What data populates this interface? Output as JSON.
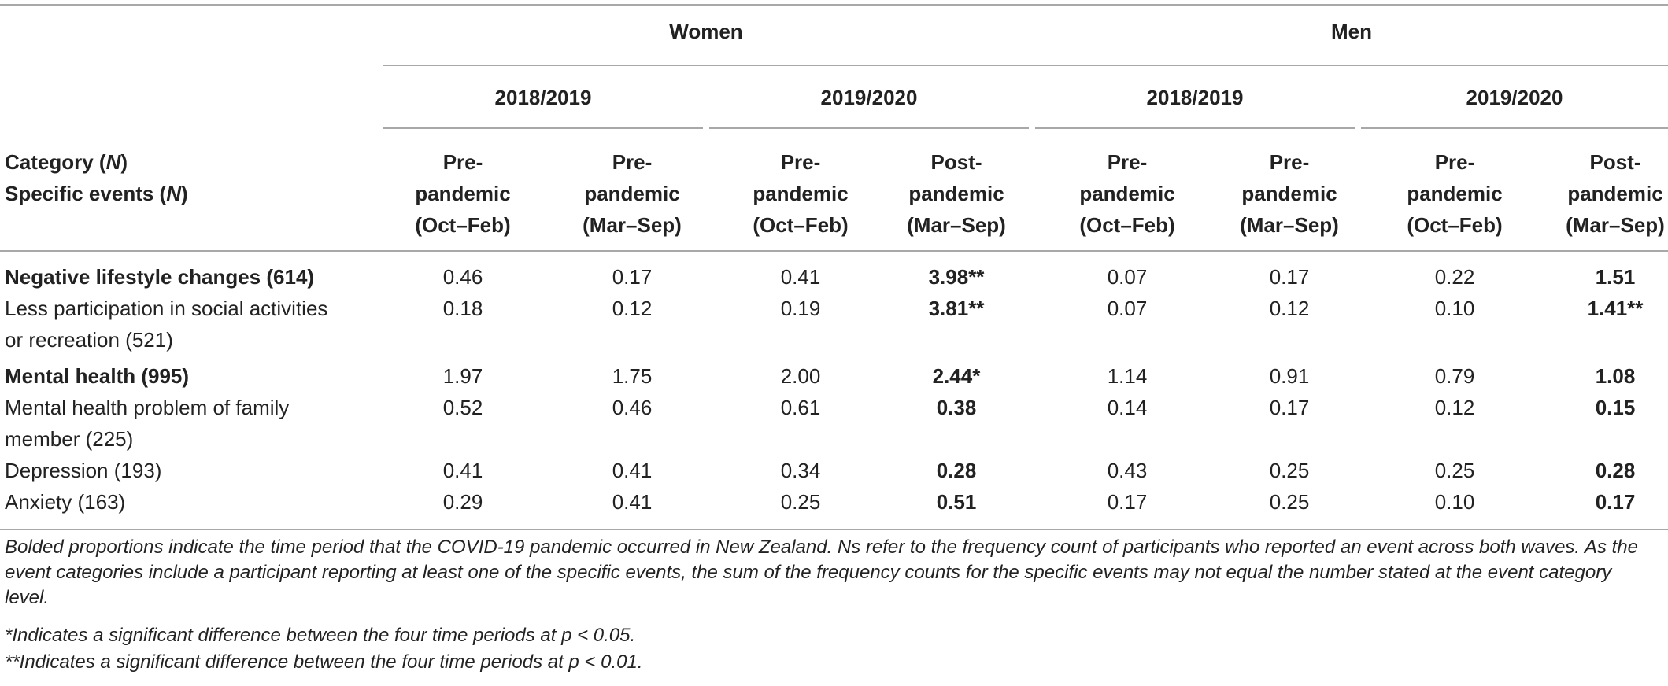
{
  "header": {
    "groups": [
      "Women",
      "Men"
    ],
    "years": [
      "2018/2019",
      "2019/2020",
      "2018/2019",
      "2019/2020"
    ],
    "stub": {
      "line1": "Category (",
      "line1_n": "N",
      "line1_end": ")",
      "line2": "Specific events (",
      "line2_n": "N",
      "line2_end": ")"
    },
    "periods": [
      {
        "l1": "Pre-",
        "l2": "pandemic",
        "l3": "(Oct–Feb)"
      },
      {
        "l1": "Pre-",
        "l2": "pandemic",
        "l3": "(Mar–Sep)"
      },
      {
        "l1": "Pre-",
        "l2": "pandemic",
        "l3": "(Oct–Feb)"
      },
      {
        "l1": "Post-",
        "l2": "pandemic",
        "l3": "(Mar–Sep)"
      },
      {
        "l1": "Pre-",
        "l2": "pandemic",
        "l3": "(Oct–Feb)"
      },
      {
        "l1": "Pre-",
        "l2": "pandemic",
        "l3": "(Mar–Sep)"
      },
      {
        "l1": "Pre-",
        "l2": "pandemic",
        "l3": "(Oct–Feb)"
      },
      {
        "l1": "Post-",
        "l2": "pandemic",
        "l3": "(Mar–Sep)"
      }
    ]
  },
  "rows": [
    {
      "label1": "Negative lifestyle changes (614)",
      "label2": "",
      "bold": true,
      "values": [
        "0.46",
        "0.17",
        "0.41",
        "3.98**",
        "0.07",
        "0.17",
        "0.22",
        "1.51"
      ]
    },
    {
      "label1": "Less participation in social activities",
      "label2": "or recreation (521)",
      "bold": false,
      "values": [
        "0.18",
        "0.12",
        "0.19",
        "3.81**",
        "0.07",
        "0.12",
        "0.10",
        "1.41**"
      ]
    },
    {
      "label1": "Mental health (995)",
      "label2": "",
      "bold": true,
      "values": [
        "1.97",
        "1.75",
        "2.00",
        "2.44*",
        "1.14",
        "0.91",
        "0.79",
        "1.08"
      ]
    },
    {
      "label1": "Mental health problem of family",
      "label2": "member (225)",
      "bold": false,
      "values": [
        "0.52",
        "0.46",
        "0.61",
        "0.38",
        "0.14",
        "0.17",
        "0.12",
        "0.15"
      ]
    },
    {
      "label1": "Depression (193)",
      "label2": "",
      "bold": false,
      "values": [
        "0.41",
        "0.41",
        "0.34",
        "0.28",
        "0.43",
        "0.25",
        "0.25",
        "0.28"
      ]
    },
    {
      "label1": "Anxiety (163)",
      "label2": "",
      "bold": false,
      "values": [
        "0.29",
        "0.41",
        "0.25",
        "0.51",
        "0.17",
        "0.25",
        "0.10",
        "0.17"
      ]
    }
  ],
  "notes": {
    "main": "Bolded proportions indicate the time period that the COVID-19 pandemic occurred in New Zealand. Ns refer to the frequency count of participants who reported an event across both waves. As the event categories include a participant reporting at least one of the specific events, the sum of the frequency counts for the specific events may not equal the number stated at the event category level.",
    "sig1": "*Indicates a significant difference between the four time periods at p < 0.05.",
    "sig2": "**Indicates a significant difference between the four time periods at p < 0.01."
  }
}
